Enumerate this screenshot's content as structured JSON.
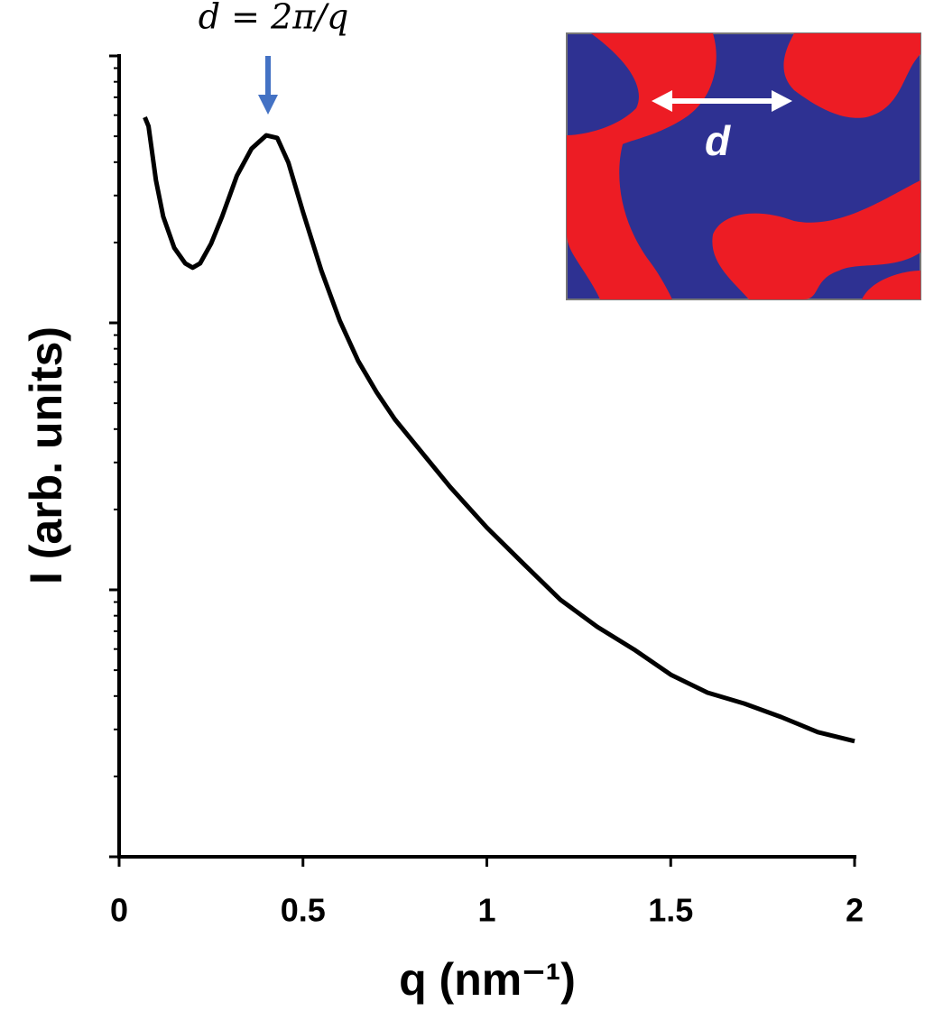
{
  "chart_data": {
    "type": "line",
    "annotation": "d = 2π/q",
    "inset_label": "d",
    "xlabel": "q (nm⁻¹)",
    "ylabel": "I (arb. units)",
    "log_y": true,
    "xlim": [
      0,
      2
    ],
    "xticks": [
      0,
      0.5,
      1,
      1.5,
      2
    ],
    "ylim": [
      1,
      1000
    ],
    "yticks": [
      1,
      10,
      100,
      1000
    ],
    "series": [
      {
        "color": "#000000",
        "x": [
          0.07,
          0.08,
          0.1,
          0.12,
          0.15,
          0.18,
          0.2,
          0.22,
          0.25,
          0.28,
          0.32,
          0.36,
          0.4,
          0.43,
          0.46,
          0.5,
          0.55,
          0.6,
          0.65,
          0.7,
          0.75,
          0.8,
          0.9,
          1.0,
          1.1,
          1.2,
          1.3,
          1.4,
          1.5,
          1.6,
          1.7,
          1.8,
          1.9,
          2.0
        ],
        "values": [
          589,
          545,
          342,
          250,
          191,
          167,
          161,
          167,
          198,
          250,
          355,
          449,
          504,
          493,
          399,
          260,
          157,
          102,
          72,
          55,
          43.5,
          35.8,
          24.3,
          17.1,
          12.5,
          9.18,
          7.27,
          5.98,
          4.81,
          4.12,
          3.75,
          3.34,
          2.93,
          2.71
        ]
      }
    ]
  }
}
